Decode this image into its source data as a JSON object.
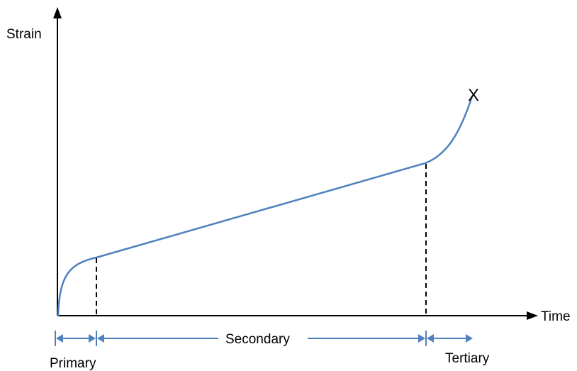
{
  "diagram": {
    "axes": {
      "y_label": "Strain",
      "x_label": "Time"
    },
    "fracture_marker": "X",
    "stages": [
      {
        "label": "Primary"
      },
      {
        "label": "Secondary"
      },
      {
        "label": "Tertiary"
      }
    ],
    "colors": {
      "curve": "#4f81bd",
      "axes": "#000000",
      "dividers": "#000000",
      "stage_arrows": "#4f81bd",
      "text": "#000000"
    }
  }
}
